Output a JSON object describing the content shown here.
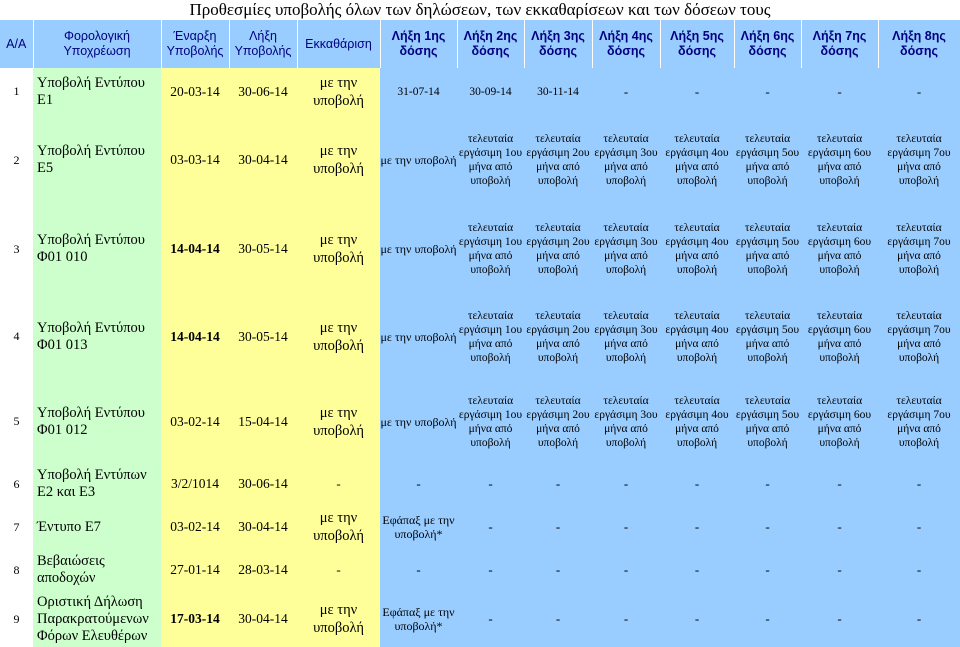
{
  "title": "Προθεσμίες υποβολής όλων των δηλώσεων, των εκκαθαρίσεων και των δόσεων τους",
  "headers": {
    "aa": "Α/Α",
    "obligation": "Φορολογική Υποχρέωση",
    "start": "Έναρξη Υποβολής",
    "end": "Λήξη Υποβολής",
    "clearance": "Εκκαθάριση",
    "inst1": "Λήξη 1ης δόσης",
    "inst2": "Λήξη 2ης δόσης",
    "inst3": "Λήξη 3ης δόσης",
    "inst4": "Λήξη 4ης δόσης",
    "inst5": "Λήξη 5ης δόσης",
    "inst6": "Λήξη 6ης δόσης",
    "inst7": "Λήξη 7ης δόσης",
    "inst8": "Λήξη 8ης δόσης"
  },
  "colors": {
    "header_bg": "#99ccff",
    "header_text": "#000080",
    "name_bg": "#ccffcc",
    "date_bg": "#ffff99",
    "installment_bg": "#99ccff"
  },
  "rows": [
    {
      "num": "1",
      "name": "Υποβολή Εντύπου Ε1",
      "start": "20-03-14",
      "end": "30-06-14",
      "clearance": "με την υποβολή",
      "installments": [
        "31-07-14",
        "30-09-14",
        "30-11-14",
        "-",
        "-",
        "-",
        "-",
        "-"
      ]
    },
    {
      "num": "2",
      "name": "Υποβολή Εντύπου Ε5",
      "start": "03-03-14",
      "end": "30-04-14",
      "clearance": "με την υποβολή",
      "installments": [
        "με την υποβολή",
        "τελευταία εργάσιμη 1ου μήνα από υποβολή",
        "τελευταία εργάσιμη 2ου μήνα από υποβολή",
        "τελευταία εργάσιμη 3ου μήνα από υποβολή",
        "τελευταία εργάσιμη 4ου μήνα από υποβολή",
        "τελευταία εργάσιμη 5ου μήνα από υποβολή",
        "τελευταία εργάσιμη 6ου μήνα από υποβολή",
        "τελευταία εργάσιμη 7ου μήνα από υποβολή"
      ]
    },
    {
      "num": "3",
      "name": "Υποβολή Εντύπου Φ01 010",
      "start": "14-04-14",
      "end": "30-05-14",
      "clearance": "με την υποβολή",
      "installments": [
        "με την υποβολή",
        "τελευταία εργάσιμη 1ου μήνα από υποβολή",
        "τελευταία εργάσιμη 2ου μήνα από υποβολή",
        "τελευταία εργάσιμη 3ου μήνα από υποβολή",
        "τελευταία εργάσιμη 4ου μήνα από υποβολή",
        "τελευταία εργάσιμη 5ου μήνα από υποβολή",
        "τελευταία εργάσιμη 6ου μήνα από υποβολή",
        "τελευταία εργάσιμη 7ου μήνα από υποβολή"
      ]
    },
    {
      "num": "4",
      "name": "Υποβολή Εντύπου Φ01 013",
      "start": "14-04-14",
      "end": "30-05-14",
      "clearance": "με την υποβολή",
      "installments": [
        "με την υποβολή",
        "τελευταία εργάσιμη 1ου μήνα από υποβολή",
        "τελευταία εργάσιμη 2ου μήνα από υποβολή",
        "τελευταία εργάσιμη 3ου μήνα από υποβολή",
        "τελευταία εργάσιμη 4ου μήνα από υποβολή",
        "τελευταία εργάσιμη 5ου μήνα από υποβολή",
        "τελευταία εργάσιμη 6ου μήνα από υποβολή",
        "τελευταία εργάσιμη 7ου μήνα από υποβολή"
      ]
    },
    {
      "num": "5",
      "name": "Υποβολή Εντύπου Φ01 012",
      "start": "03-02-14",
      "end": "15-04-14",
      "clearance": "με την υποβολή",
      "installments": [
        "με την υποβολή",
        "τελευταία εργάσιμη 1ου μήνα από υποβολή",
        "τελευταία εργάσιμη 2ου μήνα από υποβολή",
        "τελευταία εργάσιμη 3ου μήνα από υποβολή",
        "τελευταία εργάσιμη 4ου μήνα από υποβολή",
        "τελευταία εργάσιμη 5ου μήνα από υποβολή",
        "τελευταία εργάσιμη 6ου μήνα από υποβολή",
        "τελευταία εργάσιμη 7ου μήνα από υποβολή"
      ]
    },
    {
      "num": "6",
      "name": "Υποβολή Εντύπων Ε2 και Ε3",
      "start": "3/2/1014",
      "end": "30-06-14",
      "clearance": "-",
      "installments": [
        "-",
        "-",
        "-",
        "-",
        "-",
        "-",
        "-",
        "-"
      ]
    },
    {
      "num": "7",
      "name": "Έντυπο Ε7",
      "start": "03-02-14",
      "end": "30-04-14",
      "clearance": "με την υποβολή",
      "installments": [
        "Εφάπαξ με την υποβολή*",
        "-",
        "-",
        "-",
        "-",
        "-",
        "-",
        "-"
      ]
    },
    {
      "num": "8",
      "name": "Βεβαιώσεις αποδοχών",
      "start": "27-01-14",
      "end": "28-03-14",
      "clearance": "-",
      "installments": [
        "-",
        "-",
        "-",
        "-",
        "-",
        "-",
        "-",
        "-"
      ]
    },
    {
      "num": "9",
      "name": "Οριστική Δήλωση Παρακρατούμενων Φόρων Ελευθέρων",
      "start": "17-03-14",
      "end": "30-04-14",
      "clearance": "με την υποβολή",
      "installments": [
        "Εφάπαξ με την υποβολή*",
        "-",
        "-",
        "-",
        "-",
        "-",
        "-",
        "-"
      ]
    }
  ]
}
